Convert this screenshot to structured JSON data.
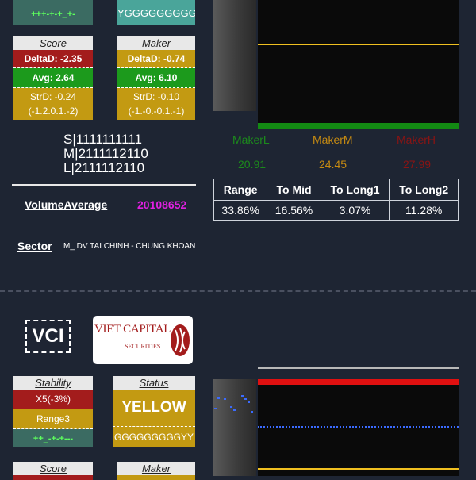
{
  "top": {
    "signal_left": "+++-+-+_+-",
    "signal_right": "YGGGGGGGGGG"
  },
  "score1": {
    "title": "Score",
    "delta": "DeltaD: -2.35",
    "avg": "Avg: 2.64",
    "strd": "StrD: -0.24",
    "range": "(-1.2.0.1.-2)"
  },
  "maker1": {
    "title": "Maker",
    "delta": "DeltaD: -0.74",
    "avg": "Avg: 6.10",
    "strd": "StrD: -0.10",
    "range": "(-1.-0.-0.1.-1)"
  },
  "codes": {
    "s": "S|1111111111",
    "m": "M|2111112110",
    "l": "L|2111112110"
  },
  "volume": {
    "label": "VolumeAverage",
    "value": "20108652"
  },
  "sector": {
    "label": "Sector",
    "value": "M_ DV TAI CHINH - CHUNG KHOAN"
  },
  "maker_levels": {
    "labels": [
      "MakerL",
      "MakerM",
      "MakerH"
    ],
    "values": [
      "20.91",
      "24.45",
      "27.99"
    ],
    "colors": [
      "#1c8a1c",
      "#c58a12",
      "#8a1414"
    ]
  },
  "stats": {
    "headers": [
      "Range",
      "To Mid",
      "To Long1",
      "To Long2"
    ],
    "values": [
      "33.86%",
      "16.56%",
      "3.07%",
      "11.28%"
    ]
  },
  "ticker2": {
    "symbol": "VCI",
    "logo_line1": "VIET CAPITAL",
    "logo_line2": "SECURITIES"
  },
  "stability": {
    "title": "Stability",
    "value": "X5(-3%)",
    "range": "Range3",
    "signal": "++_-+-+---"
  },
  "status": {
    "title": "Status",
    "value": "YELLOW",
    "signal": "GGGGGGGGGYY"
  },
  "score2": {
    "title": "Score"
  },
  "maker2": {
    "title": "Maker"
  },
  "colors": {
    "background": "#1e2533",
    "red": "#a31c1c",
    "green": "#1c9a1c",
    "gold": "#c39a12",
    "magenta": "#e020e0"
  }
}
